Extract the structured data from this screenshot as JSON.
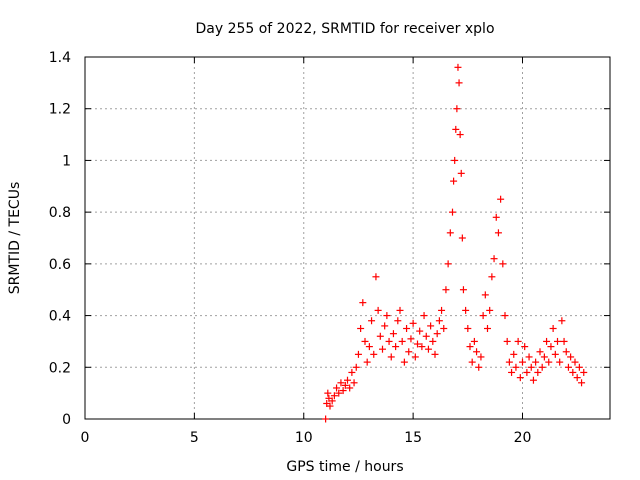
{
  "chart_data": {
    "type": "scatter",
    "title": "Day 255 of 2022, SRMTID for receiver xplo",
    "xlabel": "GPS time / hours",
    "ylabel": "SRMTID / TECUs",
    "xlim": [
      0,
      24
    ],
    "ylim": [
      0,
      1.4
    ],
    "xticks": [
      0,
      5,
      10,
      15,
      20
    ],
    "yticks": [
      0,
      0.2,
      0.4,
      0.6,
      0.8,
      1,
      1.2,
      1.4
    ],
    "xtick_labels": [
      "0",
      "5",
      "10",
      "15",
      "20"
    ],
    "ytick_labels": [
      "0",
      "0.2",
      "0.4",
      "0.6",
      "0.8",
      "1",
      "1.2",
      "1.4"
    ],
    "grid": true,
    "marker": "+",
    "series_color": "#ff0000",
    "series": [
      {
        "name": "SRMTID",
        "x": [
          11.0,
          11.05,
          11.1,
          11.15,
          11.2,
          11.3,
          11.4,
          11.5,
          11.6,
          11.7,
          11.8,
          11.9,
          12.0,
          12.1,
          12.2,
          12.3,
          12.4,
          12.5,
          12.6,
          12.7,
          12.8,
          12.9,
          13.0,
          13.1,
          13.2,
          13.3,
          13.4,
          13.5,
          13.6,
          13.7,
          13.8,
          13.9,
          14.0,
          14.1,
          14.2,
          14.3,
          14.4,
          14.5,
          14.6,
          14.7,
          14.8,
          14.9,
          15.0,
          15.1,
          15.2,
          15.3,
          15.4,
          15.5,
          15.6,
          15.7,
          15.8,
          15.9,
          16.0,
          16.1,
          16.2,
          16.3,
          16.4,
          16.5,
          16.6,
          16.7,
          16.8,
          16.85,
          16.9,
          16.95,
          17.0,
          17.05,
          17.1,
          17.15,
          17.2,
          17.25,
          17.3,
          17.4,
          17.5,
          17.6,
          17.7,
          17.8,
          17.9,
          18.0,
          18.1,
          18.2,
          18.3,
          18.4,
          18.5,
          18.6,
          18.7,
          18.8,
          18.9,
          19.0,
          19.1,
          19.2,
          19.3,
          19.4,
          19.5,
          19.6,
          19.7,
          19.8,
          19.9,
          20.0,
          20.1,
          20.2,
          20.3,
          20.4,
          20.5,
          20.6,
          20.7,
          20.8,
          20.9,
          21.0,
          21.1,
          21.2,
          21.3,
          21.4,
          21.5,
          21.6,
          21.7,
          21.8,
          21.9,
          22.0,
          22.1,
          22.2,
          22.3,
          22.4,
          22.5,
          22.6,
          22.7,
          22.8
        ],
        "y": [
          0.0,
          0.06,
          0.1,
          0.08,
          0.05,
          0.07,
          0.09,
          0.12,
          0.1,
          0.14,
          0.11,
          0.13,
          0.15,
          0.12,
          0.18,
          0.14,
          0.2,
          0.25,
          0.35,
          0.45,
          0.3,
          0.22,
          0.28,
          0.38,
          0.25,
          0.55,
          0.42,
          0.32,
          0.27,
          0.36,
          0.4,
          0.3,
          0.24,
          0.33,
          0.28,
          0.38,
          0.42,
          0.3,
          0.22,
          0.35,
          0.26,
          0.31,
          0.37,
          0.24,
          0.29,
          0.34,
          0.28,
          0.4,
          0.32,
          0.27,
          0.36,
          0.3,
          0.25,
          0.33,
          0.38,
          0.42,
          0.35,
          0.5,
          0.6,
          0.72,
          0.8,
          0.92,
          1.0,
          1.12,
          1.2,
          1.36,
          1.3,
          1.1,
          0.95,
          0.7,
          0.5,
          0.42,
          0.35,
          0.28,
          0.22,
          0.3,
          0.26,
          0.2,
          0.24,
          0.4,
          0.48,
          0.35,
          0.42,
          0.55,
          0.62,
          0.78,
          0.72,
          0.85,
          0.6,
          0.4,
          0.3,
          0.22,
          0.18,
          0.25,
          0.2,
          0.3,
          0.16,
          0.22,
          0.28,
          0.18,
          0.24,
          0.2,
          0.15,
          0.22,
          0.18,
          0.26,
          0.2,
          0.24,
          0.3,
          0.22,
          0.28,
          0.35,
          0.25,
          0.3,
          0.22,
          0.38,
          0.3,
          0.26,
          0.2,
          0.24,
          0.18,
          0.22,
          0.16,
          0.2,
          0.14,
          0.18
        ]
      }
    ]
  }
}
